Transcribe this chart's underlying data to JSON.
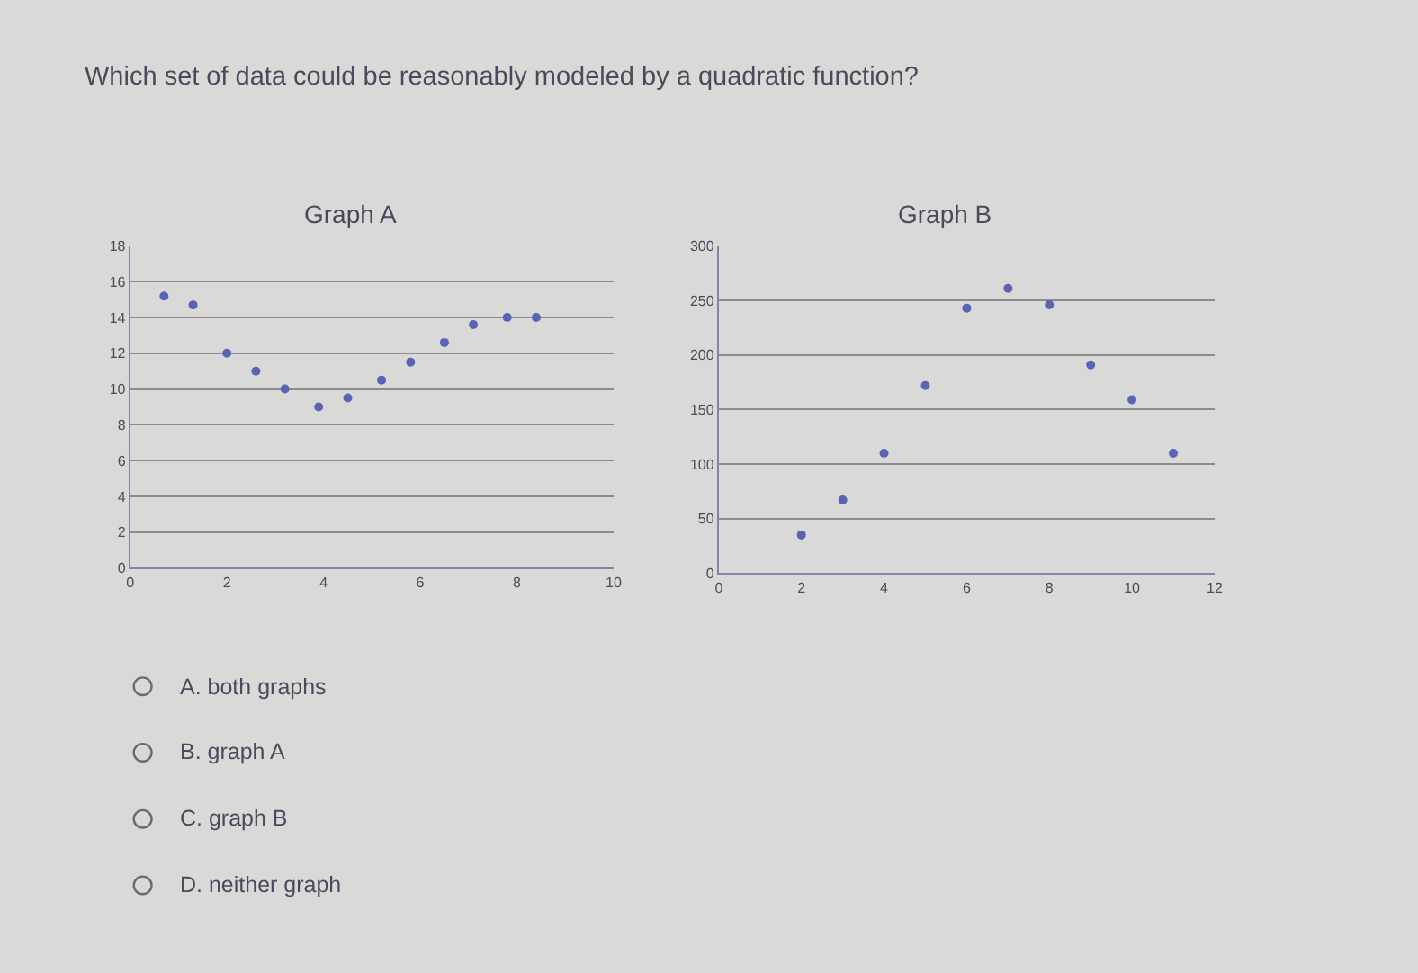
{
  "chart_data": [
    {
      "type": "other",
      "title": "Which set of data could be reasonably modeled by a quadratic function?"
    },
    {
      "type": "scatter",
      "title": "Graph A",
      "x": [
        0.7,
        1.3,
        2.0,
        2.6,
        3.2,
        3.9,
        4.5,
        5.2,
        5.8,
        6.5,
        7.1,
        7.8,
        8.4
      ],
      "values": [
        15.2,
        14.7,
        12,
        11,
        10,
        9,
        9.5,
        10.5,
        11.5,
        12.6,
        13.6,
        14,
        14
      ],
      "color": "#5b63b5",
      "marker": "circle",
      "xlim": [
        0,
        10
      ],
      "ylim": [
        0,
        18
      ],
      "xticks": [
        0,
        2,
        4,
        6,
        8,
        10
      ],
      "yticks": [
        0,
        2,
        4,
        6,
        8,
        10,
        12,
        14,
        16,
        18
      ],
      "grid": "y"
    },
    {
      "type": "scatter",
      "title": "Graph B",
      "x": [
        2,
        3,
        4,
        5,
        6,
        7,
        8,
        9,
        10,
        11
      ],
      "values": [
        35,
        67,
        110,
        172,
        243,
        261,
        246,
        191,
        159,
        110
      ],
      "color": "#5b63b5",
      "marker": "circle",
      "xlim": [
        0,
        12
      ],
      "ylim": [
        0,
        300
      ],
      "xticks": [
        0,
        2,
        4,
        6,
        8,
        10,
        12
      ],
      "yticks": [
        0,
        50,
        100,
        150,
        200,
        250,
        300
      ],
      "grid": "y"
    },
    {
      "type": "other",
      "annotations": [
        "A. both graphs",
        "B. graph A",
        "C. graph B",
        "D. neither graph"
      ]
    }
  ]
}
